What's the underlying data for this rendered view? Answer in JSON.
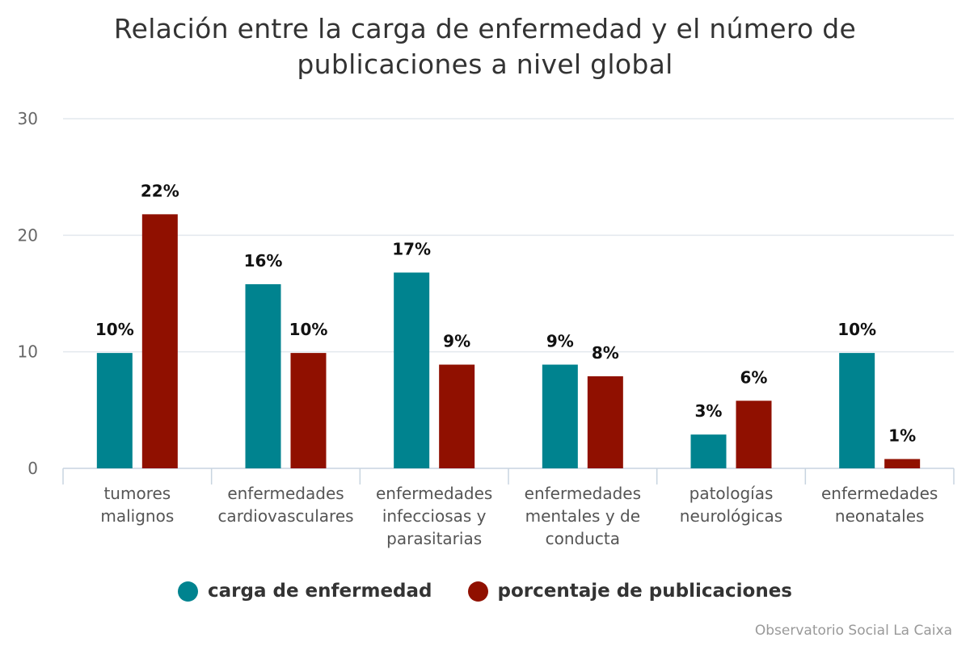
{
  "chart_data": {
    "type": "bar",
    "title": "Relación entre la carga de enfermedad y el número de publicaciones a nivel global",
    "categories": [
      [
        "tumores",
        "malignos"
      ],
      [
        "enfermedades",
        "cardiovasculares"
      ],
      [
        "enfermedades",
        "infecciosas y",
        "parasitarias"
      ],
      [
        "enfermedades",
        "mentales y de",
        "conducta"
      ],
      [
        "patologías",
        "neurológicas"
      ],
      [
        "enfermedades",
        "neonatales"
      ]
    ],
    "series": [
      {
        "name": "carga de enfermedad",
        "color": "#00838f",
        "values": [
          9.9,
          15.8,
          16.8,
          8.9,
          2.9,
          9.9
        ],
        "labels": [
          "10%",
          "16%",
          "17%",
          "9%",
          "3%",
          "10%"
        ]
      },
      {
        "name": "porcentaje de publicaciones",
        "color": "#901000",
        "values": [
          21.8,
          9.9,
          8.9,
          7.9,
          5.8,
          0.8
        ],
        "labels": [
          "22%",
          "10%",
          "9%",
          "8%",
          "6%",
          "1%"
        ]
      }
    ],
    "y_ticks": [
      "0",
      "10",
      "20",
      "30"
    ],
    "ylim": [
      0,
      30
    ],
    "xlabel": "",
    "ylabel": "",
    "grid": true,
    "legend_position": "bottom"
  },
  "credit": "Observatorio Social La Caixa"
}
